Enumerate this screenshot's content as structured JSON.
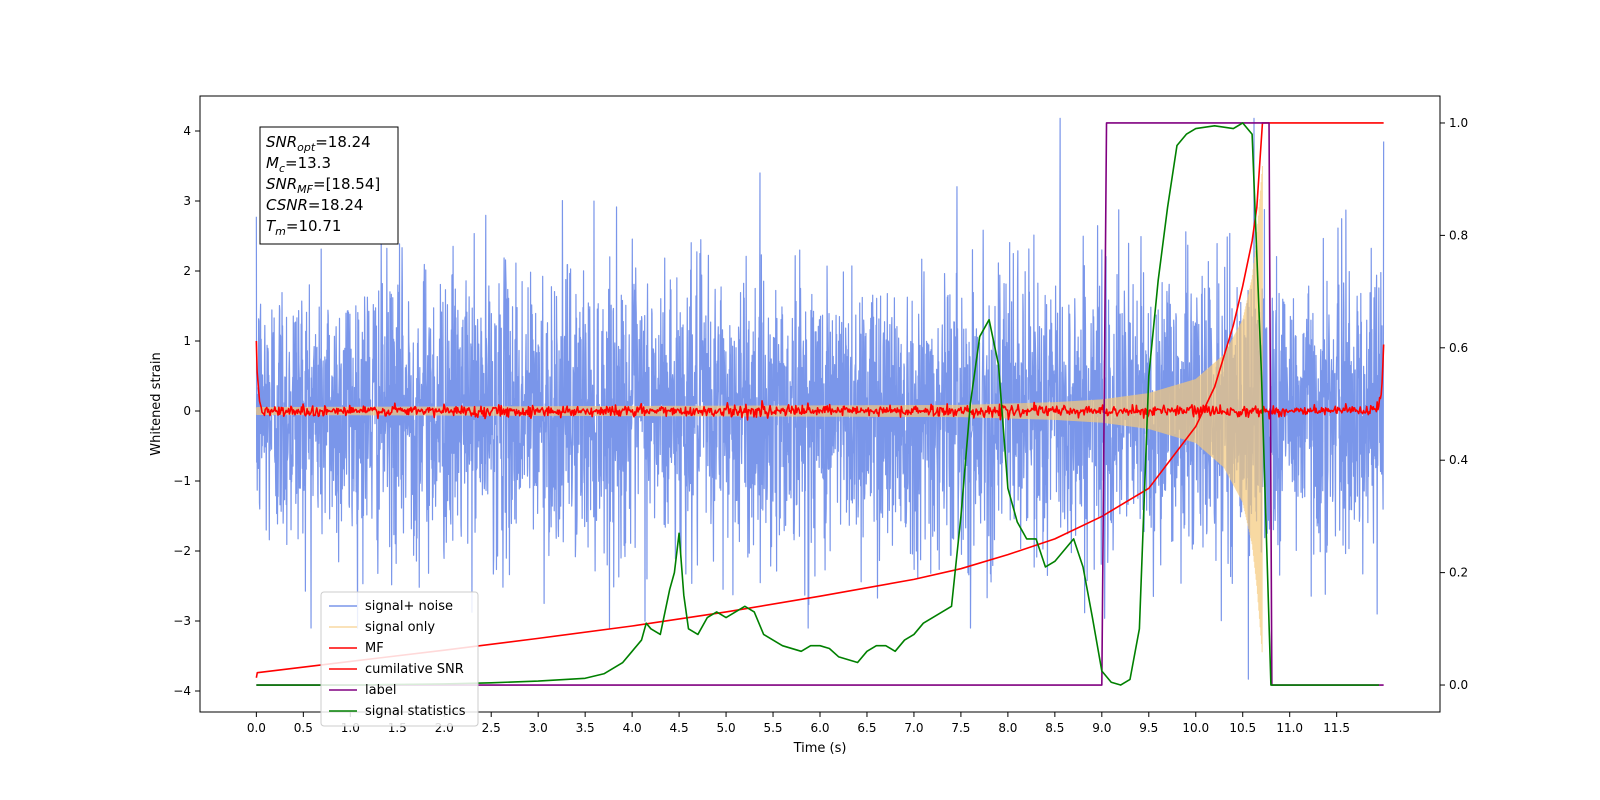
{
  "chart_data": {
    "type": "line",
    "xlabel": "Time (s)",
    "ylabel": "Whitened strain",
    "xlim": [
      -0.6,
      12.6
    ],
    "ylim": [
      -4.3,
      4.5
    ],
    "y2lim": [
      -0.048,
      1.048
    ],
    "x_ticks": [
      0.0,
      0.5,
      1.0,
      1.5,
      2.0,
      2.5,
      3.0,
      3.5,
      4.0,
      4.5,
      5.0,
      5.5,
      6.0,
      6.5,
      7.0,
      7.5,
      8.0,
      8.5,
      9.0,
      9.5,
      10.0,
      10.5,
      11.0,
      11.5
    ],
    "y_ticks": [
      -4,
      -3,
      -2,
      -1,
      0,
      1,
      2,
      3,
      4
    ],
    "y2_ticks": [
      0.0,
      0.2,
      0.4,
      0.6,
      0.8,
      1.0
    ],
    "legend_position": "lower-left",
    "grid": false,
    "annotation": {
      "lines": [
        {
          "var": "SNR",
          "sub": "opt",
          "value": "=18.24"
        },
        {
          "var": "M",
          "sub": "c",
          "value": "=13.3"
        },
        {
          "var": "SNR",
          "sub": "MF",
          "value": "=[18.54]"
        },
        {
          "var": "CSNR",
          "sub": "",
          "value": "=18.24"
        },
        {
          "var": "T",
          "sub": "m",
          "value": "=10.71"
        }
      ]
    },
    "series": [
      {
        "name": "signal+ noise",
        "axis": "left",
        "color": "#4169e1",
        "opacity": 0.7,
        "kind": "noise",
        "x_range": [
          0.0,
          12.0
        ],
        "amplitude_std": 1.0,
        "y_extremes": {
          "max": 4.18,
          "min": -3.83
        }
      },
      {
        "name": "signal only",
        "axis": "left",
        "color": "#f5c97a",
        "opacity": 0.7,
        "kind": "chirp",
        "x_range": [
          0.0,
          10.71
        ],
        "envelope": {
          "x": [
            0.0,
            7.5,
            8.5,
            9.0,
            9.5,
            10.0,
            10.3,
            10.5,
            10.6,
            10.65,
            10.71
          ],
          "y": [
            0.05,
            0.08,
            0.12,
            0.16,
            0.25,
            0.45,
            0.8,
            1.3,
            1.9,
            2.5,
            3.5
          ]
        }
      },
      {
        "name": "MF",
        "axis": "left",
        "color": "#ff0000",
        "opacity": 1,
        "kind": "mf",
        "x_range": [
          0.0,
          12.0
        ],
        "start_value": 1.0,
        "end_value": 0.95,
        "noise_std": 0.04
      },
      {
        "name": "cumilative SNR",
        "axis": "right",
        "color": "#ff0000",
        "opacity": 1,
        "kind": "line",
        "x": [
          0.0,
          0.01,
          1.0,
          2.0,
          3.0,
          4.0,
          5.0,
          6.0,
          7.0,
          7.5,
          8.0,
          8.5,
          9.0,
          9.5,
          10.0,
          10.2,
          10.4,
          10.5,
          10.6,
          10.65,
          10.71,
          12.0
        ],
        "y": [
          0.013,
          0.022,
          0.042,
          0.062,
          0.083,
          0.105,
          0.13,
          0.158,
          0.188,
          0.207,
          0.232,
          0.26,
          0.3,
          0.35,
          0.46,
          0.53,
          0.64,
          0.71,
          0.79,
          0.85,
          1.0,
          1.0
        ]
      },
      {
        "name": "label",
        "axis": "right",
        "color": "#800080",
        "opacity": 1,
        "kind": "line",
        "x": [
          0.0,
          9.0,
          9.05,
          10.78,
          10.81,
          12.0
        ],
        "y": [
          0.0,
          0.0,
          1.0,
          1.0,
          0.0,
          0.0
        ]
      },
      {
        "name": "signal statistics",
        "axis": "right",
        "color": "#008000",
        "opacity": 1,
        "kind": "line",
        "x": [
          0.0,
          1.0,
          2.0,
          2.5,
          3.0,
          3.5,
          3.7,
          3.9,
          4.0,
          4.1,
          4.15,
          4.2,
          4.3,
          4.4,
          4.45,
          4.5,
          4.55,
          4.6,
          4.7,
          4.8,
          4.9,
          5.0,
          5.1,
          5.2,
          5.3,
          5.4,
          5.5,
          5.6,
          5.8,
          5.9,
          6.0,
          6.1,
          6.2,
          6.4,
          6.5,
          6.6,
          6.7,
          6.8,
          6.9,
          7.0,
          7.1,
          7.2,
          7.3,
          7.4,
          7.5,
          7.6,
          7.7,
          7.8,
          7.9,
          8.0,
          8.1,
          8.2,
          8.3,
          8.4,
          8.5,
          8.6,
          8.7,
          8.8,
          8.9,
          9.0,
          9.1,
          9.2,
          9.3,
          9.4,
          9.5,
          9.6,
          9.7,
          9.8,
          9.9,
          10.0,
          10.2,
          10.4,
          10.5,
          10.6,
          10.7,
          10.8,
          11.0,
          11.5,
          11.95
        ],
        "y": [
          0.0,
          0.0,
          0.002,
          0.004,
          0.007,
          0.012,
          0.02,
          0.04,
          0.06,
          0.08,
          0.11,
          0.1,
          0.09,
          0.17,
          0.2,
          0.27,
          0.16,
          0.1,
          0.09,
          0.12,
          0.13,
          0.12,
          0.13,
          0.14,
          0.13,
          0.09,
          0.08,
          0.07,
          0.06,
          0.07,
          0.07,
          0.065,
          0.05,
          0.04,
          0.06,
          0.07,
          0.07,
          0.06,
          0.08,
          0.09,
          0.11,
          0.12,
          0.13,
          0.14,
          0.3,
          0.5,
          0.62,
          0.65,
          0.57,
          0.35,
          0.29,
          0.26,
          0.26,
          0.21,
          0.22,
          0.24,
          0.26,
          0.21,
          0.12,
          0.025,
          0.005,
          0.0,
          0.01,
          0.1,
          0.55,
          0.72,
          0.85,
          0.96,
          0.98,
          0.99,
          0.995,
          0.99,
          1.0,
          0.98,
          0.55,
          0.0,
          0.0,
          0.0,
          0.0
        ]
      }
    ]
  }
}
